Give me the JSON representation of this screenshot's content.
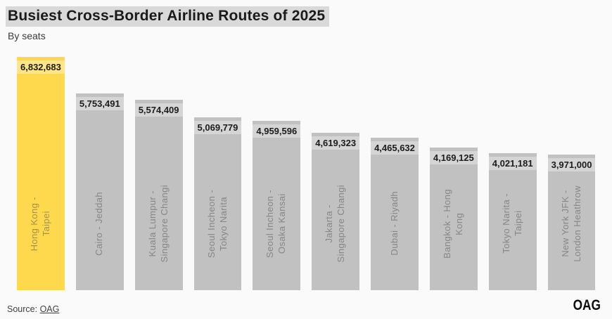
{
  "page": {
    "background": "#fafafa"
  },
  "header": {
    "title": "Busiest Cross-Border Airline Routes of 2025",
    "subtitle": "By seats",
    "title_highlight_color": "#d9d9d9"
  },
  "footer": {
    "source_prefix": "Source: ",
    "source_link": "OAG",
    "logo": "OAG"
  },
  "chart_data": {
    "type": "bar",
    "title": "Busiest Cross-Border Airline Routes of 2025",
    "subtitle": "By seats",
    "orientation": "vertical",
    "grid": false,
    "legend_position": "none",
    "axes_visible": false,
    "categories": [
      "Hong Kong - Taipei",
      "Cairo - Jeddah",
      "Kuala Lumpur - Singapore Changi",
      "Seoul Incheon - Tokyo Narita",
      "Seoul Incheon - Osaka Kansai",
      "Jakarta - Singapore Changi",
      "Dubai - Riyadh",
      "Bangkok - Hong Kong",
      "Tokyo Narita - Taipei",
      "New York JFK - London Heathrow"
    ],
    "tick_labels": [
      "Hong Kong -\nTaipei",
      "Cairo - Jeddah",
      "Kuala Lumpur -\nSingapore Changi",
      "Seoul Incheon -\nTokyo Narita",
      "Seoul Incheon -\nOsaka Kansai",
      "Jakarta -\nSingapore Changi",
      "Dubai - Riyadh",
      "Bangkok - Hong\nKong",
      "Tokyo Narita -\nTaipei",
      "New York JFK -\nLondon Heathrow"
    ],
    "values": [
      6832683,
      5753491,
      5574409,
      5069779,
      4959596,
      4619323,
      4465632,
      4169125,
      4021181,
      3971000
    ],
    "value_labels": [
      "6,832,683",
      "5,753,491",
      "5,574,409",
      "5,069,779",
      "4,959,596",
      "4,619,323",
      "4,465,632",
      "4,169,125",
      "4,021,181",
      "3,971,000"
    ],
    "highlight_index": 0,
    "ylim": [
      0,
      6832683
    ],
    "xlabel": "",
    "ylabel": "",
    "colors": {
      "bar": "#c1c1c1",
      "highlight_bar": "#ffd94d",
      "value_text": "#1c1c1c",
      "category_text": "rgba(80,80,80,0.52)"
    }
  }
}
